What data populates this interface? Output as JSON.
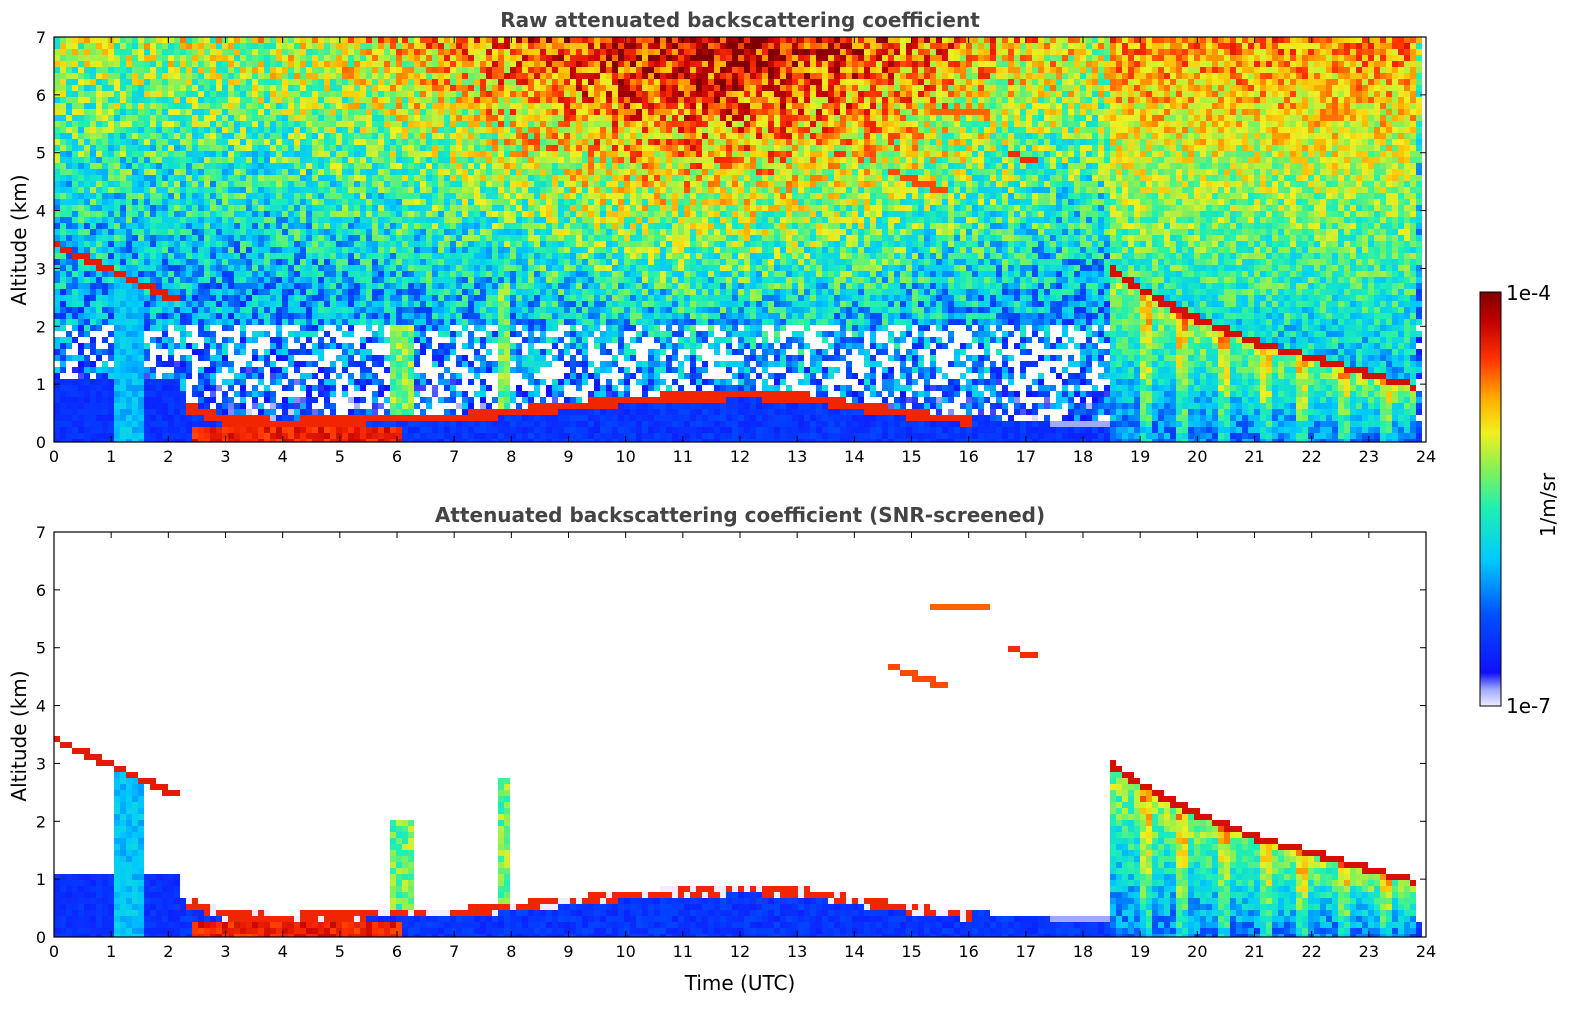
{
  "chart_data": [
    {
      "type": "heatmap",
      "title": "Raw attenuated backscattering coefficient",
      "xlabel": "",
      "ylabel": "Altitude (km)",
      "xlim": [
        0,
        24
      ],
      "ylim": [
        0,
        7
      ],
      "x_ticks": [
        "0",
        "1",
        "2",
        "3",
        "4",
        "5",
        "6",
        "7",
        "8",
        "9",
        "10",
        "11",
        "12",
        "13",
        "14",
        "15",
        "16",
        "17",
        "18",
        "19",
        "20",
        "21",
        "22",
        "23",
        "24"
      ],
      "y_ticks": [
        "0",
        "1",
        "2",
        "3",
        "4",
        "5",
        "6",
        "7"
      ],
      "colorscale": "jet-log",
      "color_range": [
        "1e-7",
        "1e-4"
      ],
      "colorbar_label": "1/m/sr",
      "features": [
        {
          "name": "boundary layer aerosol",
          "x_range": [
            0,
            18.4
          ],
          "top_km": [
            0.5,
            0.9
          ]
        },
        {
          "name": "elevated aerosol layer",
          "x_range": [
            0,
            2.2
          ],
          "top_km": [
            3.5,
            2.4
          ]
        },
        {
          "name": "mid-level cloud streaks",
          "x_range": [
            14.5,
            17.5
          ],
          "alt_km": [
            4.3,
            5.8
          ]
        },
        {
          "name": "cloud deck",
          "x_range": [
            18.4,
            23.8
          ],
          "top_km": [
            3.0,
            0.95
          ]
        }
      ]
    },
    {
      "type": "heatmap",
      "title": "Attenuated backscattering coefficient (SNR-screened)",
      "xlabel": "Time (UTC)",
      "ylabel": "Altitude (km)",
      "xlim": [
        0,
        24
      ],
      "ylim": [
        0,
        7
      ],
      "x_ticks": [
        "0",
        "1",
        "2",
        "3",
        "4",
        "5",
        "6",
        "7",
        "8",
        "9",
        "10",
        "11",
        "12",
        "13",
        "14",
        "15",
        "16",
        "17",
        "18",
        "19",
        "20",
        "21",
        "22",
        "23",
        "24"
      ],
      "y_ticks": [
        "0",
        "1",
        "2",
        "3",
        "4",
        "5",
        "6",
        "7"
      ],
      "colorscale": "jet-log",
      "color_range": [
        "1e-7",
        "1e-4"
      ],
      "colorbar_label": "1/m/sr"
    }
  ],
  "colorbar": {
    "max_label": "1e-4",
    "min_label": "1e-7",
    "unit_label": "1/m/sr"
  }
}
